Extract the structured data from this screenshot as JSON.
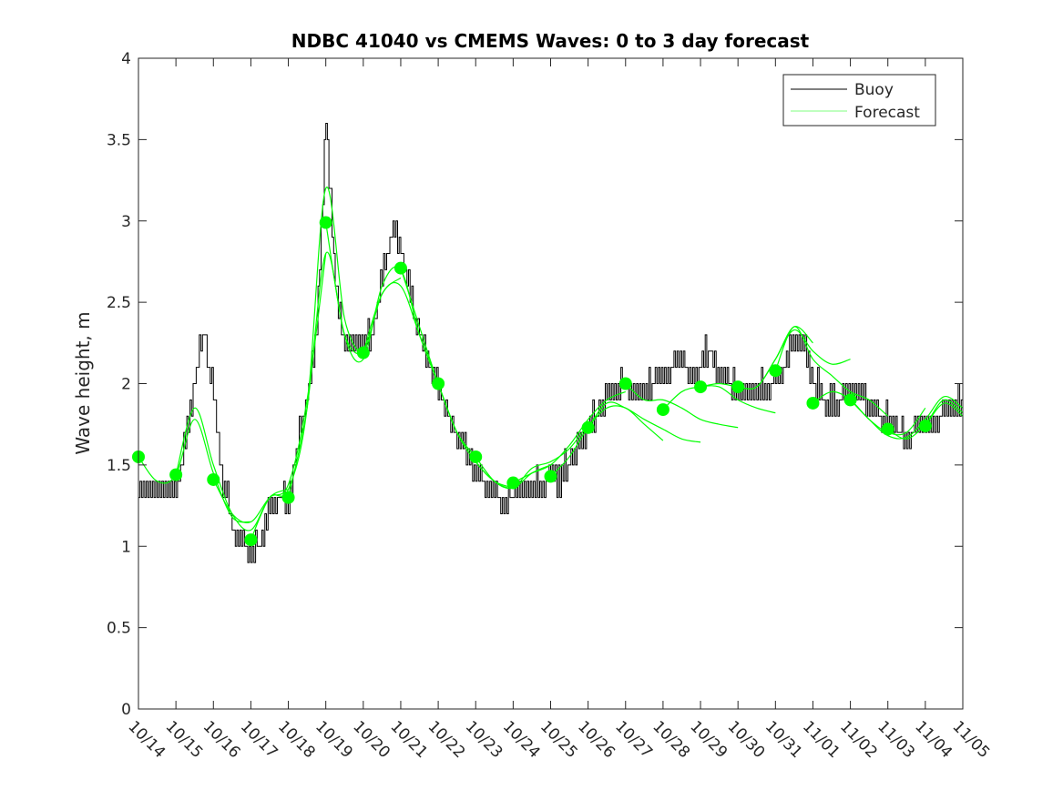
{
  "chart_data": {
    "type": "line",
    "title": "NDBC 41040 vs CMEMS Waves: 0 to 3 day forecast",
    "xlabel": "",
    "ylabel": "Wave height, m",
    "xlim_days": [
      0,
      22
    ],
    "ylim": [
      0,
      4
    ],
    "yticks": [
      0,
      0.5,
      1,
      1.5,
      2,
      2.5,
      3,
      3.5,
      4
    ],
    "ytick_labels": [
      "0",
      "0.5",
      "1",
      "1.5",
      "2",
      "2.5",
      "3",
      "3.5",
      "4"
    ],
    "xtick_labels": [
      "10/14",
      "10/15",
      "10/16",
      "10/17",
      "10/18",
      "10/19",
      "10/20",
      "10/21",
      "10/22",
      "10/23",
      "10/24",
      "10/25",
      "10/26",
      "10/27",
      "10/28",
      "10/29",
      "10/30",
      "10/31",
      "11/01",
      "11/02",
      "11/03",
      "11/04",
      "11/05"
    ],
    "grid": false,
    "legend": {
      "position": "top-right",
      "entries": [
        "Buoy",
        "Forecast"
      ]
    },
    "colors": {
      "buoy": "#000000",
      "forecast": "#00ff00",
      "axis": "#262626"
    },
    "buoy": {
      "name": "Buoy",
      "step_days": 0.25,
      "values": [
        1.35,
        1.3,
        1.3,
        1.3,
        1.3,
        1.6,
        2.0,
        2.3,
        1.9,
        1.4,
        1.1,
        1.0,
        0.95,
        1.0,
        1.2,
        1.3,
        1.25,
        1.6,
        1.9,
        2.3,
        3.6,
        2.6,
        2.2,
        2.25,
        2.2,
        2.3,
        2.6,
        2.95,
        2.8,
        2.5,
        2.3,
        2.1,
        1.95,
        1.8,
        1.65,
        1.55,
        1.45,
        1.35,
        1.3,
        1.25,
        1.3,
        1.3,
        1.35,
        1.35,
        1.4,
        1.4,
        1.5,
        1.6,
        1.7,
        1.8,
        1.9,
        1.95,
        2.0,
        1.9,
        1.9,
        2.0,
        2.0,
        2.1,
        2.15,
        2.0,
        2.1,
        2.2,
        2.0,
        2.0,
        1.9,
        1.9,
        1.95,
        1.95,
        2.0,
        2.1,
        2.25,
        2.2,
        2.0,
        1.9,
        1.85,
        1.9,
        1.9,
        1.95,
        1.85,
        1.8,
        1.75,
        1.7,
        1.65,
        1.7,
        1.7,
        1.75,
        1.8,
        1.85,
        1.85
      ]
    },
    "forecasts": {
      "name": "Forecast",
      "step_days": 0.5,
      "runs": [
        {
          "start_day": 0,
          "values": [
            1.55,
            1.4,
            1.44,
            1.78,
            1.45,
            1.18,
            1.15
          ]
        },
        {
          "start_day": 1,
          "values": [
            1.44,
            1.85,
            1.5,
            1.2,
            1.1,
            1.3,
            1.35
          ]
        },
        {
          "start_day": 2,
          "values": [
            1.41,
            1.2,
            1.15,
            1.3,
            1.38,
            1.9,
            2.8
          ]
        },
        {
          "start_day": 3,
          "values": [
            1.04,
            1.3,
            1.35,
            1.85,
            3.2,
            2.4,
            2.15
          ]
        },
        {
          "start_day": 4,
          "values": [
            1.3,
            1.85,
            2.8,
            2.3,
            2.2,
            2.55,
            2.65
          ]
        },
        {
          "start_day": 5,
          "values": [
            2.99,
            2.3,
            2.15,
            2.6,
            2.7,
            2.3,
            2.0
          ]
        },
        {
          "start_day": 6,
          "values": [
            2.19,
            2.55,
            2.6,
            2.3,
            2.0,
            1.7,
            1.55
          ]
        },
        {
          "start_day": 7,
          "values": [
            2.71,
            2.35,
            2.0,
            1.7,
            1.52,
            1.4,
            1.36
          ]
        },
        {
          "start_day": 8,
          "values": [
            2.0,
            1.7,
            1.52,
            1.4,
            1.36,
            1.45,
            1.5
          ]
        },
        {
          "start_day": 9,
          "values": [
            1.55,
            1.4,
            1.36,
            1.48,
            1.52,
            1.6,
            1.75
          ]
        },
        {
          "start_day": 10,
          "values": [
            1.39,
            1.45,
            1.5,
            1.62,
            1.78,
            1.9,
            1.95
          ]
        },
        {
          "start_day": 11,
          "values": [
            1.43,
            1.55,
            1.73,
            1.85,
            1.85,
            1.75,
            1.65
          ]
        },
        {
          "start_day": 12,
          "values": [
            1.73,
            1.88,
            1.85,
            1.78,
            1.72,
            1.66,
            1.64
          ]
        },
        {
          "start_day": 13,
          "values": [
            2.0,
            1.9,
            1.9,
            1.85,
            1.78,
            1.75,
            1.73
          ]
        },
        {
          "start_day": 14,
          "values": [
            1.84,
            1.95,
            1.98,
            1.98,
            1.9,
            1.85,
            1.82
          ]
        },
        {
          "start_day": 15,
          "values": [
            1.98,
            2.0,
            1.98,
            1.98,
            2.15,
            2.35,
            2.25
          ]
        },
        {
          "start_day": 16,
          "values": [
            1.98,
            1.98,
            2.15,
            2.33,
            2.2,
            2.12,
            2.15
          ]
        },
        {
          "start_day": 17,
          "values": [
            2.08,
            2.35,
            2.15,
            2.05,
            1.95,
            1.9,
            1.8
          ]
        },
        {
          "start_day": 18,
          "values": [
            1.88,
            1.95,
            1.9,
            1.78,
            1.7,
            1.7,
            1.85
          ]
        },
        {
          "start_day": 19,
          "values": [
            1.9,
            1.78,
            1.68,
            1.67,
            1.78,
            1.92,
            1.85
          ]
        },
        {
          "start_day": 20,
          "values": [
            1.72,
            1.66,
            1.75,
            1.9,
            1.82
          ]
        },
        {
          "start_day": 21,
          "values": [
            1.74,
            1.88,
            1.8
          ]
        }
      ]
    }
  }
}
